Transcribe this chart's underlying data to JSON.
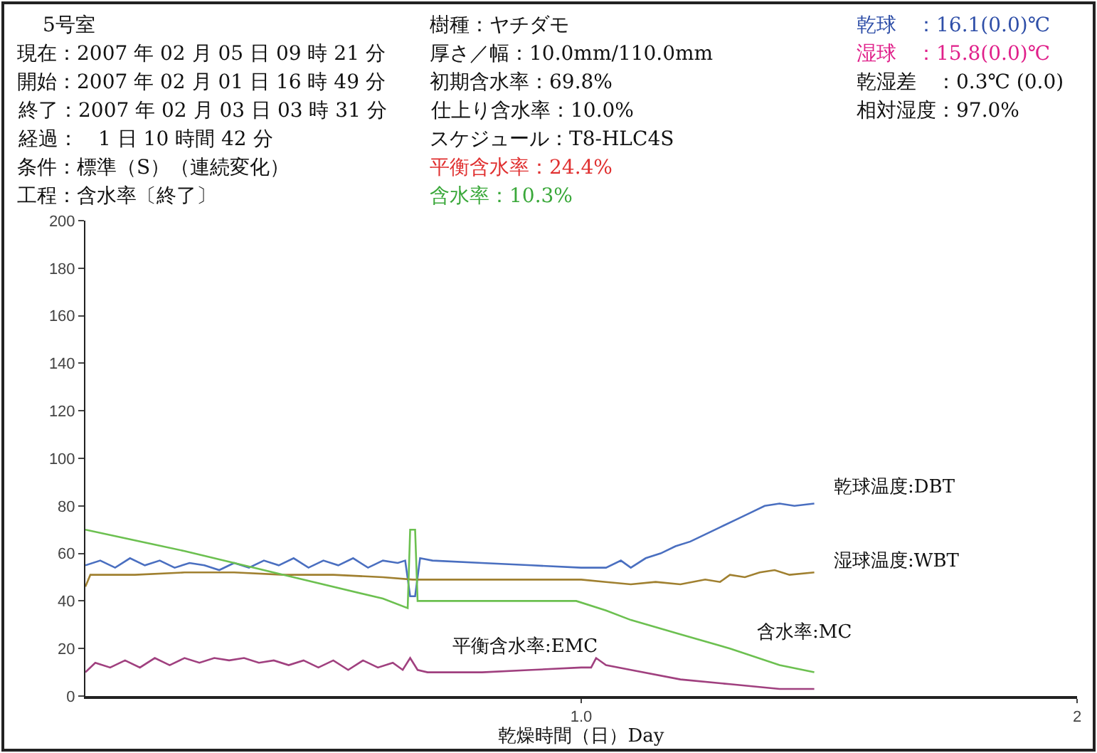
{
  "chart_data": {
    "type": "line",
    "xlabel": "乾燥時間（日）Day",
    "annotations": [
      "5号室",
      "現在：2007 年 02 月 05 日 09 時 21 分",
      "開始：2007 年 02 月 01 日 16 時 49 分",
      "終了：2007 年 02 月 03 日 03 時 31 分",
      "経過：　1 日 10 時間 42 分",
      "条件：標準（S）（連続変化）",
      "工程：含水率〔終了〕",
      "樹種：ヤチダモ",
      "厚さ／幅：10.0mm/110.0mm",
      "初期含水率：69.8%",
      "仕上り含水率：10.0%",
      "スケジュール：T8-HLC4S",
      "平衡含水率：24.4%",
      "含水率：10.3%",
      "乾球　：16.1(0.0)℃",
      "湿球　：15.8(0.0)℃",
      "乾湿差　：0.3℃ (0.0)",
      "相対湿度：97.0%"
    ],
    "xlim": [
      0,
      2
    ],
    "xticks": [
      {
        "value": 1,
        "label": "1.0"
      },
      2
    ],
    "ylim": [
      0,
      200
    ],
    "yticks": [
      0,
      20,
      40,
      60,
      80,
      100,
      120,
      140,
      160,
      180,
      200
    ],
    "grid": false,
    "legend": false,
    "marker": "none",
    "line_style": "solid",
    "series": [
      {
        "name": "乾球温度:DBT",
        "color": "#4a6fc0",
        "x": [
          0,
          0.03,
          0.06,
          0.09,
          0.12,
          0.15,
          0.18,
          0.21,
          0.24,
          0.27,
          0.3,
          0.33,
          0.36,
          0.39,
          0.42,
          0.45,
          0.48,
          0.51,
          0.54,
          0.57,
          0.6,
          0.63,
          0.645,
          0.655,
          0.665,
          0.675,
          0.7,
          0.8,
          0.9,
          1.0,
          1.05,
          1.08,
          1.1,
          1.13,
          1.16,
          1.19,
          1.22,
          1.25,
          1.28,
          1.31,
          1.34,
          1.37,
          1.4,
          1.43,
          1.47
        ],
        "values": [
          55,
          57,
          54,
          58,
          55,
          57,
          54,
          56,
          55,
          53,
          56,
          54,
          57,
          55,
          58,
          54,
          57,
          55,
          58,
          54,
          57,
          56,
          57,
          42,
          42,
          58,
          57,
          56,
          55,
          54,
          54,
          57,
          54,
          58,
          60,
          63,
          65,
          68,
          71,
          74,
          77,
          80,
          81,
          80,
          81
        ]
      },
      {
        "name": "湿球温度:WBT",
        "color": "#a08030",
        "x": [
          0,
          0.01,
          0.1,
          0.2,
          0.3,
          0.4,
          0.5,
          0.6,
          0.66,
          1.0,
          1.05,
          1.1,
          1.15,
          1.2,
          1.25,
          1.28,
          1.3,
          1.33,
          1.36,
          1.39,
          1.42,
          1.47
        ],
        "values": [
          46,
          51,
          51,
          52,
          52,
          51,
          51,
          50,
          49,
          49,
          48,
          47,
          48,
          47,
          49,
          48,
          51,
          50,
          52,
          53,
          51,
          52
        ]
      },
      {
        "name": "含水率:MC",
        "color": "#6cc050",
        "x": [
          0,
          0.2,
          0.4,
          0.6,
          0.65,
          0.655,
          0.665,
          0.67,
          0.99,
          1.05,
          1.1,
          1.2,
          1.3,
          1.4,
          1.47
        ],
        "values": [
          70,
          61,
          51,
          41,
          37,
          70,
          70,
          40,
          40,
          36,
          32,
          26,
          20,
          13,
          10
        ]
      },
      {
        "name": "平衡含水率:EMC",
        "color": "#a0407f",
        "x": [
          0,
          0.02,
          0.05,
          0.08,
          0.11,
          0.14,
          0.17,
          0.2,
          0.23,
          0.26,
          0.29,
          0.32,
          0.35,
          0.38,
          0.41,
          0.44,
          0.47,
          0.5,
          0.53,
          0.56,
          0.59,
          0.62,
          0.64,
          0.655,
          0.67,
          0.69,
          0.8,
          0.9,
          1.0,
          1.02,
          1.03,
          1.05,
          1.1,
          1.2,
          1.3,
          1.4,
          1.47
        ],
        "values": [
          10,
          14,
          12,
          15,
          12,
          16,
          13,
          16,
          14,
          16,
          15,
          16,
          14,
          15,
          13,
          15,
          12,
          15,
          11,
          15,
          12,
          14,
          11,
          16,
          11,
          10,
          10,
          11,
          12,
          12,
          16,
          13,
          11,
          7,
          5,
          3,
          3
        ]
      }
    ]
  }
}
